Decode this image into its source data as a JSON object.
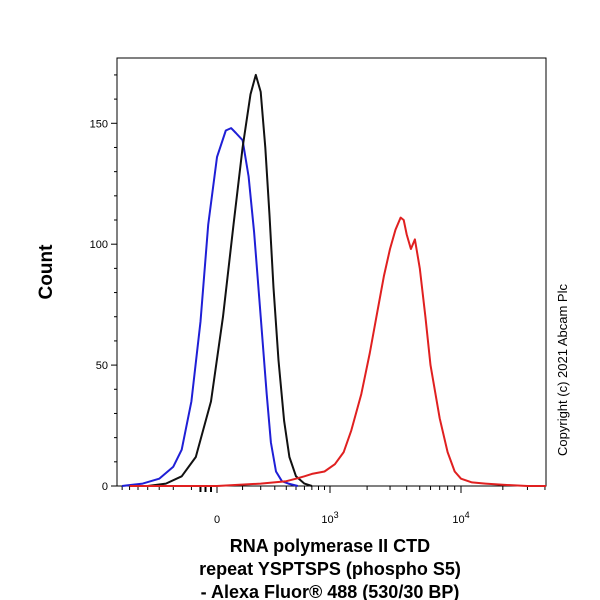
{
  "chart_data": {
    "type": "line",
    "xlabel_lines": [
      "RNA polymerase II CTD",
      "repeat YSPTSPS (phospho S5)",
      "- Alexa Fluor® 488 (530/30 BP)"
    ],
    "ylabel": "Count",
    "x_scale": "biexponential",
    "x_tick_labels": [
      {
        "value": 0,
        "base": "0",
        "exp": ""
      },
      {
        "value": 1000,
        "base": "10",
        "exp": "3"
      },
      {
        "value": 10000,
        "base": "10",
        "exp": "4"
      }
    ],
    "ylim": [
      0,
      177
    ],
    "y_ticks": [
      0,
      50,
      100,
      150
    ],
    "grid": false,
    "legend": "none",
    "copyright": "Copyright (c) 2021 Abcam Plc",
    "series": [
      {
        "color": "#1f1fd6",
        "x": [
          -700,
          -450,
          -300,
          -200,
          -150,
          -100,
          -60,
          -30,
          0,
          30,
          50,
          70,
          100,
          130,
          160,
          200,
          240,
          270,
          310,
          360,
          420,
          520
        ],
        "y": [
          0,
          1,
          3,
          8,
          15,
          35,
          68,
          108,
          136,
          147,
          148,
          146,
          143,
          128,
          105,
          70,
          38,
          18,
          6,
          2,
          1,
          0
        ]
      },
      {
        "color": "#111111",
        "x": [
          -400,
          -250,
          -150,
          -80,
          -20,
          20,
          60,
          100,
          140,
          170,
          200,
          230,
          260,
          290,
          330,
          380,
          430,
          500,
          600,
          700
        ],
        "y": [
          0,
          1,
          4,
          12,
          35,
          70,
          108,
          140,
          162,
          170,
          163,
          140,
          112,
          82,
          52,
          27,
          12,
          4,
          1,
          0
        ]
      },
      {
        "color": "#e02020",
        "x": [
          -600,
          0,
          200,
          400,
          500,
          600,
          700,
          900,
          1100,
          1300,
          1500,
          1800,
          2100,
          2400,
          2700,
          3000,
          3300,
          3600,
          3800,
          4000,
          4300,
          4600,
          5000,
          5500,
          6000,
          7000,
          8000,
          9000,
          10000,
          12000,
          15000,
          20000,
          30000,
          50000
        ],
        "y": [
          0,
          0,
          1,
          2,
          3,
          4,
          5,
          6,
          9,
          14,
          23,
          38,
          55,
          72,
          87,
          98,
          106,
          111,
          110,
          104,
          98,
          102,
          90,
          70,
          50,
          28,
          14,
          6,
          3,
          1.5,
          1,
          0.5,
          0,
          0
        ]
      }
    ]
  }
}
